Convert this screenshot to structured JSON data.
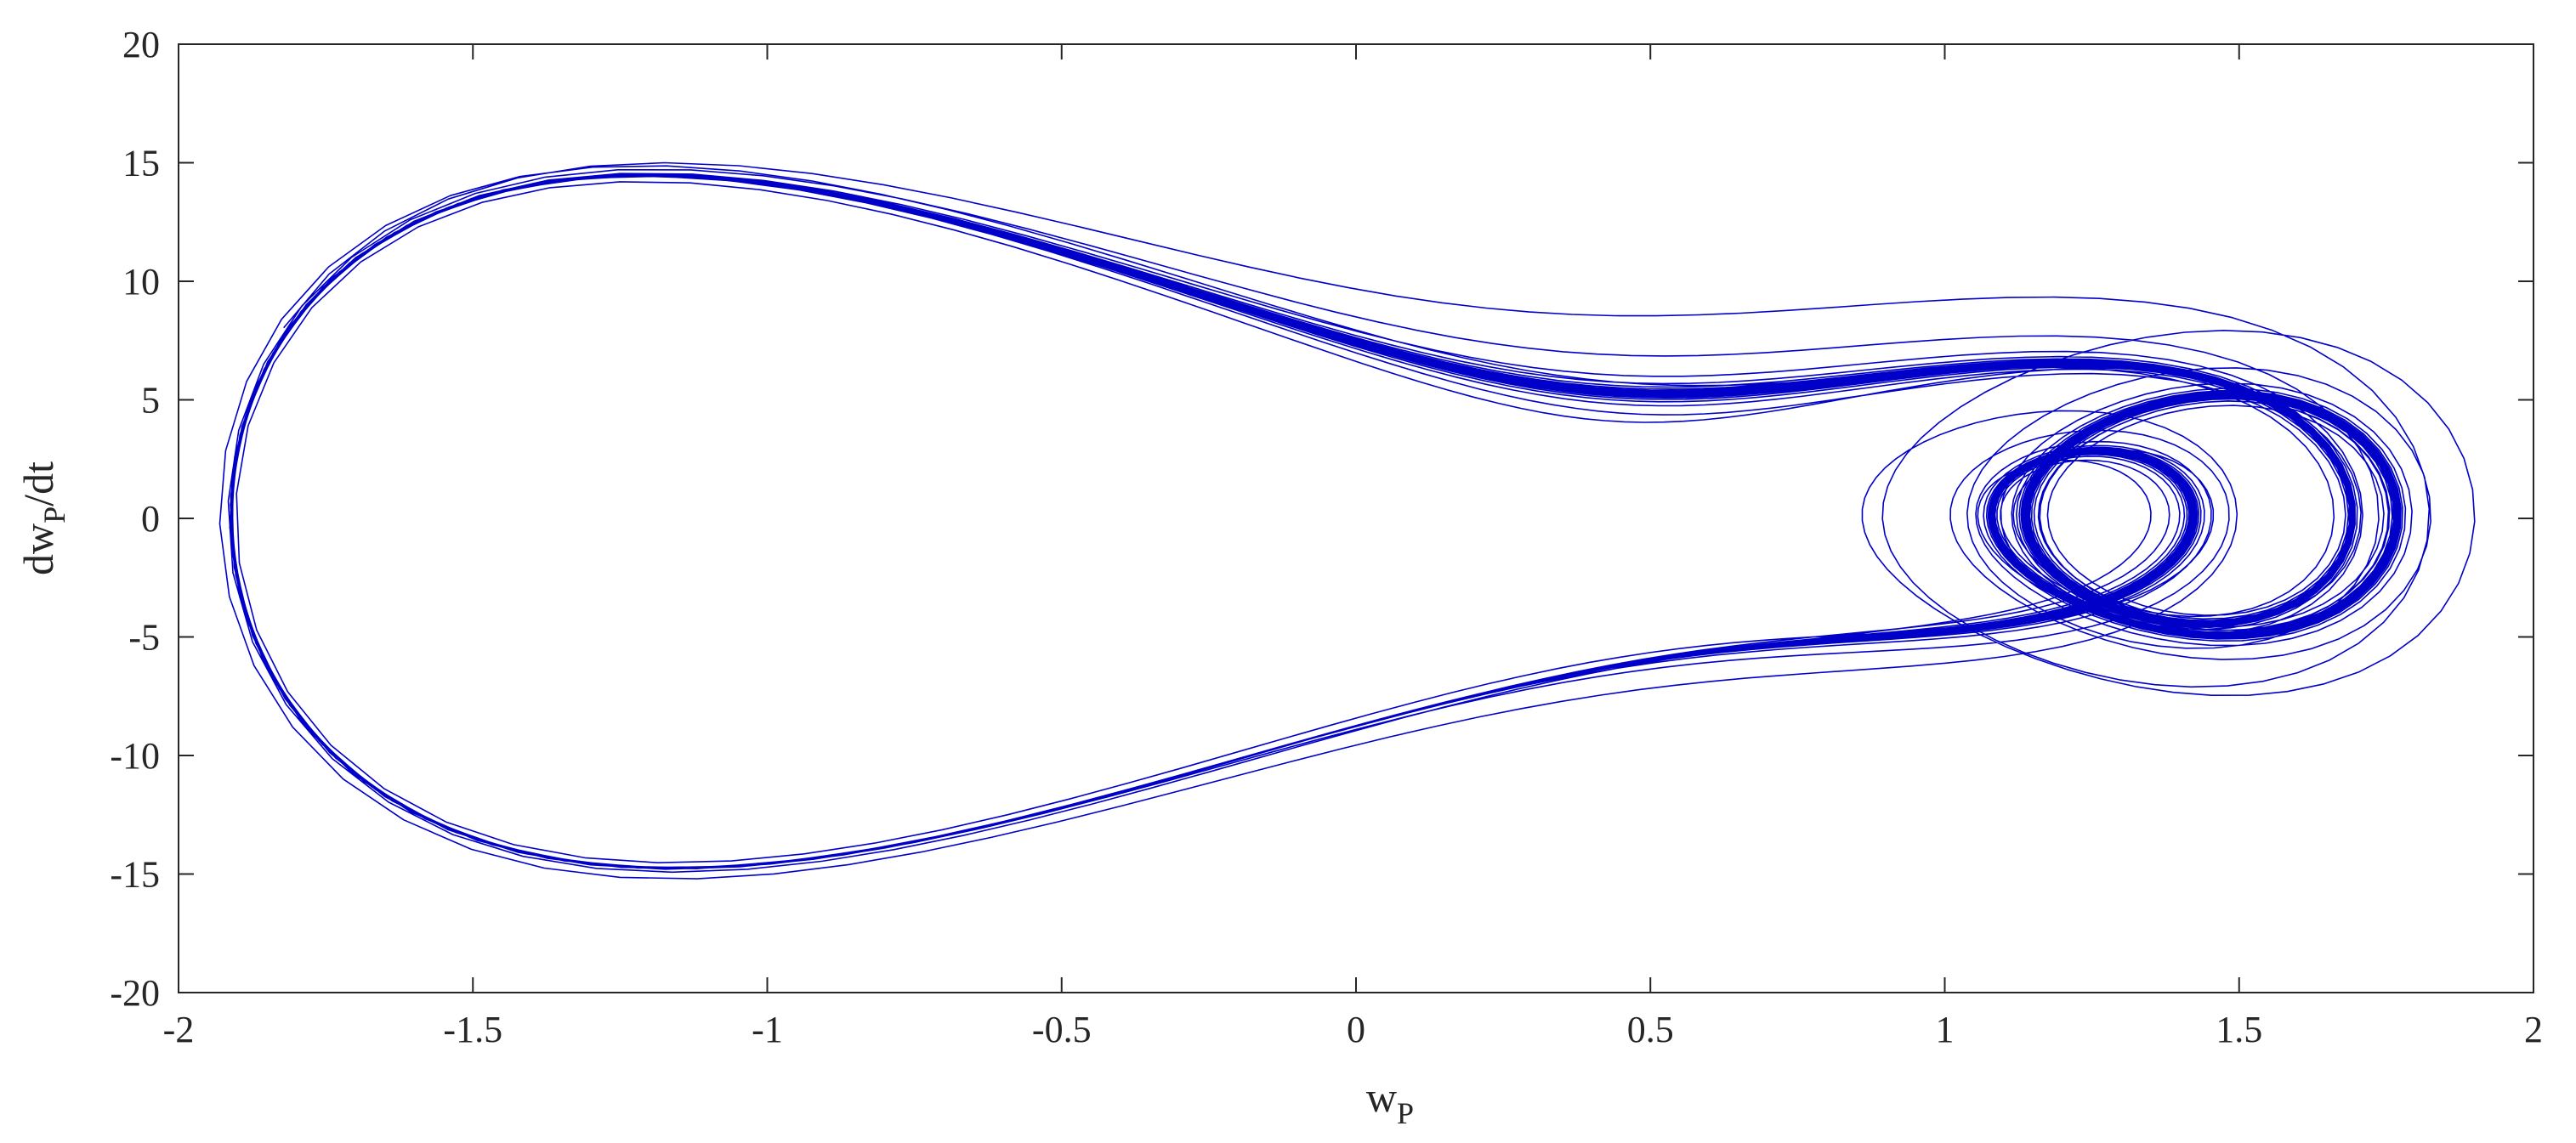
{
  "chart_data": {
    "type": "line",
    "title": "",
    "xlabel": "w",
    "xlabel_subscript": "P",
    "ylabel_prefix": "dw",
    "ylabel_subscript": "P",
    "ylabel_suffix": "/dt",
    "xlim": [
      -2,
      2
    ],
    "ylim": [
      -20,
      20
    ],
    "xticks": [
      -2,
      -1.5,
      -1,
      -0.5,
      0,
      0.5,
      1,
      1.5,
      2
    ],
    "xtick_labels": [
      "-2",
      "-1.5",
      "-1",
      "-0.5",
      "0",
      "0.5",
      "1",
      "1.5",
      "2"
    ],
    "yticks": [
      -20,
      -15,
      -10,
      -5,
      0,
      5,
      10,
      15,
      20
    ],
    "ytick_labels": [
      "-20",
      "-15",
      "-10",
      "-5",
      "0",
      "5",
      "10",
      "15",
      "20"
    ],
    "grid": false,
    "box": true,
    "line_color": "#0000c8",
    "trajectory": {
      "description_type": "phase-portrait",
      "x_extent": [
        -1.93,
        1.9
      ],
      "y_extent": [
        -15.2,
        15.0
      ]
    }
  }
}
